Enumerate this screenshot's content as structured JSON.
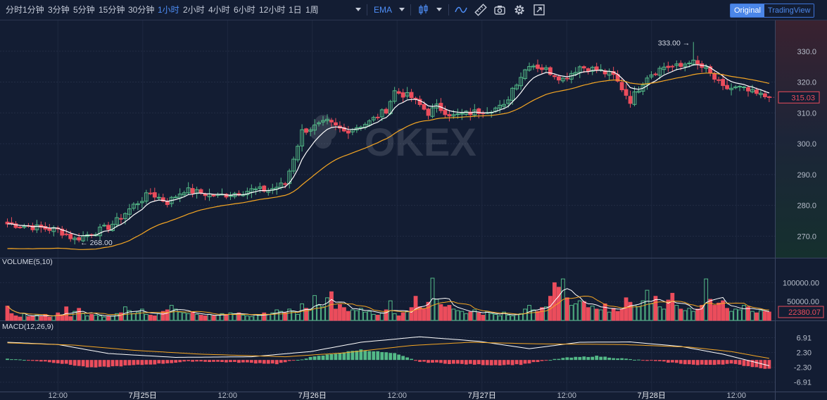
{
  "toolbar": {
    "intervals": [
      "分时",
      "1分钟",
      "3分钟",
      "5分钟",
      "15分钟",
      "30分钟",
      "1小时",
      "2小时",
      "4小时",
      "6小时",
      "12小时",
      "1日",
      "1周"
    ],
    "active_interval": "1小时",
    "indicator_label": "EMA",
    "switch": {
      "original": "Original",
      "tradingview": "TradingView"
    }
  },
  "watermark": "OKEX",
  "colors": {
    "up": "#53b987",
    "down": "#eb4d5c",
    "ema_fast": "#ffffff",
    "ema_slow": "#f5a623",
    "accent": "#4e8ef7",
    "background": "#131d33"
  },
  "chart_data": {
    "type": "candlestick",
    "timeframe": "1小时",
    "x_tick_labels": [
      "12:00",
      "7月25日",
      "12:00",
      "7月26日",
      "12:00",
      "7月27日",
      "12:00",
      "7月28日",
      "12:00"
    ],
    "price_axis": {
      "ticks": [
        270,
        280,
        290,
        300,
        310,
        320,
        330
      ],
      "range": [
        263,
        340
      ],
      "last_price": 315.03
    },
    "annotations": {
      "high": 333.0,
      "high_label": "333.00 →",
      "low": 268.0,
      "low_label": "← 268.00"
    },
    "price_anchors": [
      [
        0,
        274
      ],
      [
        6,
        273
      ],
      [
        12,
        272
      ],
      [
        16,
        269
      ],
      [
        20,
        271
      ],
      [
        24,
        273
      ],
      [
        26,
        275
      ],
      [
        30,
        280
      ],
      [
        34,
        284
      ],
      [
        38,
        281
      ],
      [
        42,
        285
      ],
      [
        46,
        284
      ],
      [
        50,
        283
      ],
      [
        54,
        284
      ],
      [
        58,
        285
      ],
      [
        62,
        285
      ],
      [
        66,
        287
      ],
      [
        70,
        304
      ],
      [
        74,
        306
      ],
      [
        76,
        307
      ],
      [
        80,
        304
      ],
      [
        82,
        305
      ],
      [
        86,
        307
      ],
      [
        90,
        311
      ],
      [
        92,
        317
      ],
      [
        96,
        315
      ],
      [
        100,
        310
      ],
      [
        102,
        312
      ],
      [
        106,
        309
      ],
      [
        110,
        310
      ],
      [
        114,
        311
      ],
      [
        118,
        312
      ],
      [
        120,
        318
      ],
      [
        124,
        326
      ],
      [
        128,
        324
      ],
      [
        132,
        321
      ],
      [
        136,
        325
      ],
      [
        140,
        324
      ],
      [
        144,
        322
      ],
      [
        148,
        314
      ],
      [
        152,
        322
      ],
      [
        156,
        325
      ],
      [
        160,
        325
      ],
      [
        162,
        327
      ],
      [
        166,
        324
      ],
      [
        170,
        318
      ],
      [
        174,
        318
      ],
      [
        178,
        316
      ],
      [
        181,
        315.03
      ]
    ],
    "volume": {
      "label": "VOLUME(5,10)",
      "axis_ticks": [
        50000,
        100000
      ],
      "axis_tick_labels": [
        "50000.00",
        "100000.00"
      ],
      "range": [
        0,
        140000
      ],
      "last_value": 22380.07,
      "last_label": "22380.07",
      "values": [
        38000,
        18000,
        12000,
        9000,
        18000,
        10000,
        12000,
        14000,
        10000,
        16000,
        9000,
        12000,
        20000,
        15000,
        36000,
        10000,
        24000,
        32000,
        18000,
        12000,
        16000,
        14000,
        12000,
        9000,
        10000,
        12000,
        18000,
        20000,
        36000,
        26000,
        18000,
        22000,
        30000,
        16000,
        14000,
        12000,
        18000,
        24000,
        28000,
        40000,
        30000,
        22000,
        20000,
        18000,
        22000,
        16000,
        14000,
        12000,
        16000,
        12000,
        14000,
        18000,
        16000,
        20000,
        18000,
        20000,
        14000,
        12000,
        10000,
        16000,
        14000,
        20000,
        16000,
        20000,
        28000,
        24000,
        20000,
        30000,
        24000,
        16000,
        44000,
        32000,
        30000,
        66000,
        40000,
        36000,
        60000,
        76000,
        30000,
        42000,
        34000,
        24000,
        28000,
        26000,
        32000,
        22000,
        24000,
        16000,
        14000,
        20000,
        28000,
        52000,
        18000,
        12000,
        20000,
        24000,
        34000,
        64000,
        36000,
        30000,
        48000,
        112000,
        56000,
        42000,
        36000,
        40000,
        30000,
        26000,
        24000,
        18000,
        22000,
        28000,
        20000,
        14000,
        24000,
        18000,
        16000,
        12000,
        22000,
        14000,
        12000,
        16000,
        18000,
        30000,
        40000,
        28000,
        24000,
        34000,
        36000,
        64000,
        100000,
        88000,
        110000,
        60000,
        40000,
        44000,
        52000,
        50000,
        34000,
        38000,
        30000,
        28000,
        44000,
        22000,
        32000,
        24000,
        30000,
        60000,
        48000,
        40000,
        36000,
        52000,
        80000,
        44000,
        64000,
        36000,
        30000,
        54000,
        72000,
        40000,
        30000,
        26000,
        32000,
        24000,
        30000,
        40000,
        110000,
        56000,
        40000,
        46000,
        52000,
        32000,
        24000,
        30000,
        28000,
        40000,
        36000,
        24000,
        20000,
        26000,
        24000,
        22380
      ]
    },
    "macd": {
      "label": "MACD(12,26,9)",
      "axis_ticks": [
        -6.91,
        -2.3,
        2.3,
        6.91
      ],
      "axis_tick_labels": [
        "-6.91",
        "-2.30",
        "2.30",
        "6.91"
      ],
      "range": [
        -8.5,
        9
      ],
      "dif_anchors": [
        [
          0,
          5.5
        ],
        [
          12,
          4.8
        ],
        [
          24,
          2.0
        ],
        [
          40,
          0.8
        ],
        [
          58,
          1.0
        ],
        [
          72,
          2.6
        ],
        [
          84,
          5.5
        ],
        [
          98,
          7.2
        ],
        [
          112,
          5.8
        ],
        [
          124,
          3.5
        ],
        [
          136,
          5.5
        ],
        [
          148,
          5.6
        ],
        [
          160,
          4.2
        ],
        [
          170,
          1.8
        ],
        [
          181,
          -1.8
        ]
      ],
      "dea_anchors": [
        [
          0,
          5.3
        ],
        [
          16,
          4.6
        ],
        [
          30,
          3.0
        ],
        [
          46,
          1.8
        ],
        [
          66,
          1.0
        ],
        [
          80,
          2.2
        ],
        [
          96,
          4.5
        ],
        [
          110,
          5.5
        ],
        [
          126,
          5.0
        ],
        [
          146,
          4.8
        ],
        [
          162,
          4.0
        ],
        [
          172,
          2.6
        ],
        [
          181,
          0.5
        ]
      ],
      "hist_anchors": [
        [
          0,
          0.4
        ],
        [
          10,
          -0.6
        ],
        [
          20,
          -2.4
        ],
        [
          36,
          -1.2
        ],
        [
          44,
          -0.4
        ],
        [
          56,
          -0.8
        ],
        [
          64,
          -1.2
        ],
        [
          72,
          0.8
        ],
        [
          84,
          3.2
        ],
        [
          92,
          2.0
        ],
        [
          98,
          -0.6
        ],
        [
          106,
          -1.2
        ],
        [
          116,
          -1.6
        ],
        [
          122,
          -1.4
        ],
        [
          132,
          0.6
        ],
        [
          140,
          1.2
        ],
        [
          148,
          0.2
        ],
        [
          156,
          -0.6
        ],
        [
          164,
          -1.6
        ],
        [
          172,
          -1.2
        ],
        [
          181,
          -2.8
        ]
      ]
    }
  }
}
